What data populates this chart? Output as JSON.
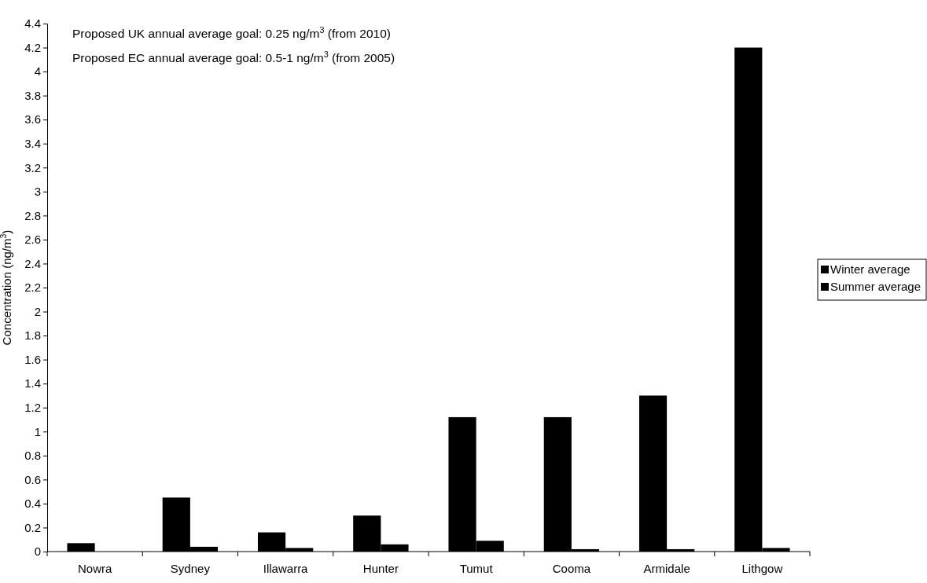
{
  "chart_data": {
    "type": "bar",
    "ylabel": "Concentration (ng/m$^{3}$)",
    "categories": [
      "Nowra",
      "Sydney",
      "Illawarra",
      "Hunter",
      "Tumut",
      "Cooma",
      "Armidale",
      "Lithgow"
    ],
    "series": [
      {
        "name": "Winter average",
        "color": "#000000",
        "values": [
          0.07,
          0.45,
          0.16,
          0.3,
          1.12,
          1.12,
          1.3,
          4.2
        ]
      },
      {
        "name": "Summer average",
        "color": "#000000",
        "values": [
          null,
          0.04,
          0.03,
          0.06,
          0.09,
          0.02,
          0.02,
          0.03
        ]
      }
    ],
    "ylim": [
      0,
      4.4
    ],
    "yticks": [
      0,
      0.2,
      0.4,
      0.6,
      0.8,
      1,
      1.2,
      1.4,
      1.6,
      1.8,
      2,
      2.2,
      2.4,
      2.6,
      2.8,
      3,
      3.2,
      3.4,
      3.6,
      3.8,
      4,
      4.2,
      4.4
    ],
    "annotations": [
      "Proposed UK annual average goal: 0.25 ng/m$^{3}$ (from 2010)",
      "Proposed EC annual average goal: 0.5-1 ng/m$^{3}$ (from 2005)"
    ],
    "grid": false,
    "legend": "right"
  }
}
